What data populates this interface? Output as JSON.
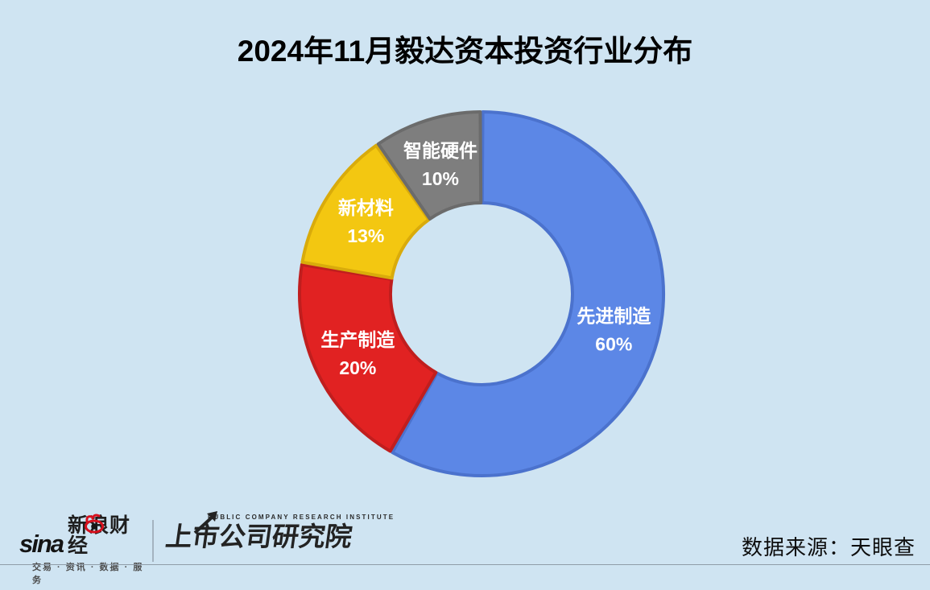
{
  "chart_data": {
    "type": "pie",
    "variant": "donut",
    "title": "2024年11月毅达资本投资行业分布",
    "categories": [
      "先进制造",
      "生产制造",
      "新材料",
      "智能硬件"
    ],
    "values": [
      60,
      20,
      13,
      10
    ],
    "unit": "%",
    "segments": [
      {
        "label": "先进制造",
        "value": 60,
        "display": "60%",
        "color": "#5c87e6",
        "border_color": "#4b72cd"
      },
      {
        "label": "生产制造",
        "value": 20,
        "display": "20%",
        "color": "#e12222",
        "border_color": "#c01e1e"
      },
      {
        "label": "新材料",
        "value": 13,
        "display": "13%",
        "color": "#f3c711",
        "border_color": "#d9ab0b"
      },
      {
        "label": "智能硬件",
        "value": 10,
        "display": "10%",
        "color": "#7e7e7e",
        "border_color": "#6b6b6b"
      }
    ],
    "start_angle_deg": 0,
    "direction": "clockwise",
    "legend": "none",
    "label_placement": "inside",
    "label_text_color": "#ffffff"
  },
  "footer": {
    "sina": {
      "brand": "sina",
      "brand_cn": "新浪财经",
      "tagline": "交易 · 资讯 · 数据 · 服务"
    },
    "institute": {
      "name_en": "PUBLIC COMPANY RESEARCH INSTITUTE",
      "name_cn": "上市公司研究院"
    },
    "source_label": "数据来源：天眼查"
  },
  "colors": {
    "background": "#cfe4f2",
    "title_text": "#000000",
    "footer_rule": "#8f9ca8",
    "sina_red": "#d6101d"
  }
}
